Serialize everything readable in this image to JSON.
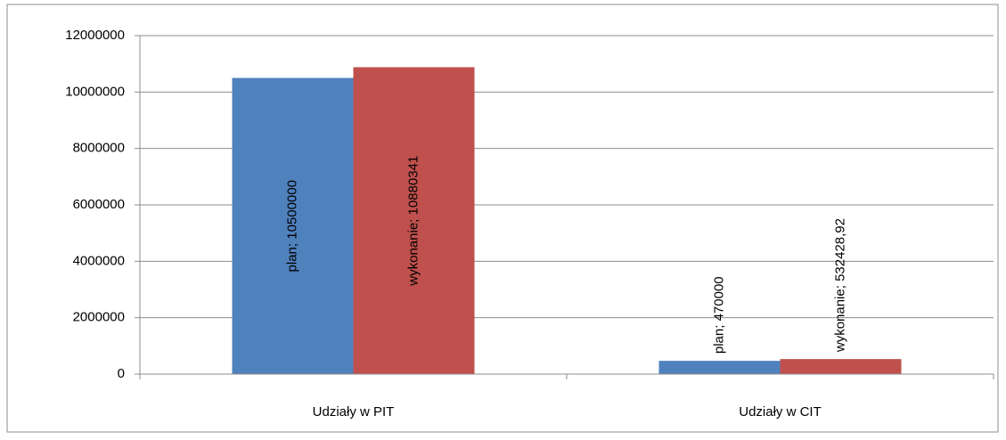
{
  "chart_data": {
    "type": "bar",
    "categories": [
      "Udziały w PIT",
      "Udziały w CIT"
    ],
    "series": [
      {
        "name": "plan",
        "color": "#4f81bd",
        "values": [
          10500000,
          470000
        ],
        "value_labels": [
          "plan; 10500000",
          "plan; 470000"
        ]
      },
      {
        "name": "wykonanie",
        "color": "#c0504d",
        "values": [
          10880341,
          532428.92
        ],
        "value_labels": [
          "wykonanie; 10880341",
          "wykonanie; 532428,92"
        ]
      }
    ],
    "ylim": [
      0,
      12000000
    ],
    "yticks": [
      0,
      2000000,
      4000000,
      6000000,
      8000000,
      10000000,
      12000000
    ],
    "grid": true
  }
}
